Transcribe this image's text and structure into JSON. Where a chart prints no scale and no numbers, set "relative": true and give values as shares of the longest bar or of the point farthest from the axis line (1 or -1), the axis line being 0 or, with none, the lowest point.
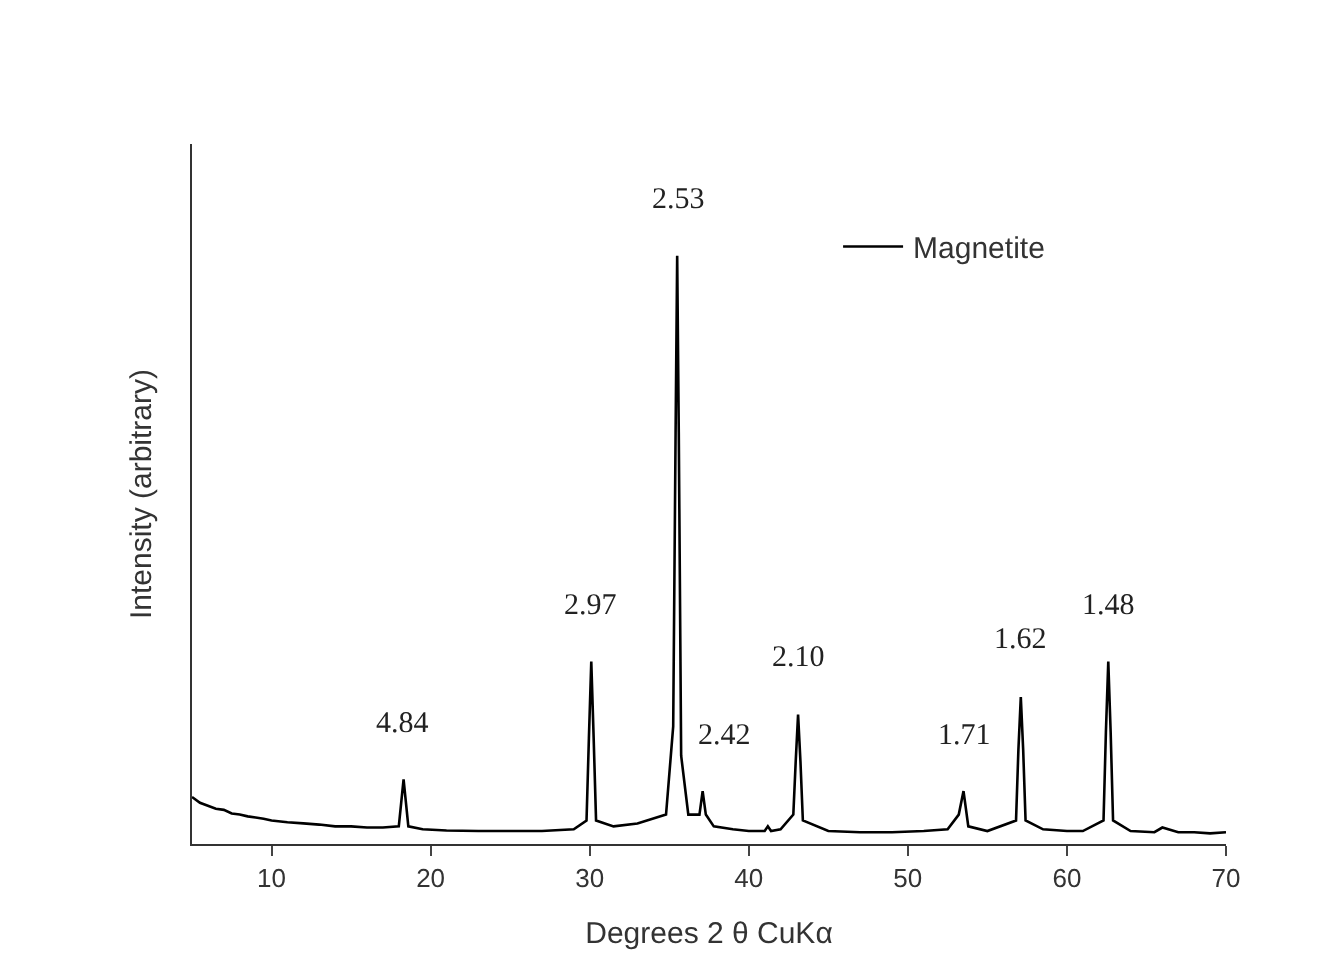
{
  "chart_data": {
    "type": "line",
    "relative": true,
    "xlabel": "Degrees 2 θ CuKα",
    "ylabel": "Intensity (arbitrary)",
    "xlim": [
      5,
      70
    ],
    "xticks": [
      10,
      20,
      30,
      40,
      50,
      60,
      70
    ],
    "legend": "top right",
    "marker": "none",
    "line_style": "solid",
    "series": [
      {
        "name": "Magnetite",
        "color": "#000000",
        "x": [
          5,
          5.5,
          6,
          6.5,
          7,
          7.5,
          8,
          8.5,
          9,
          9.5,
          10,
          11,
          12,
          13,
          14,
          15,
          16,
          17,
          18.0,
          18.15,
          18.3,
          18.45,
          18.6,
          19.5,
          21,
          23,
          25,
          27,
          29,
          29.8,
          29.95,
          30.1,
          30.25,
          30.4,
          31.5,
          33,
          34.8,
          35.25,
          35.4,
          35.5,
          35.6,
          35.75,
          36.2,
          36.9,
          37.1,
          37.3,
          37.8,
          39,
          40,
          41,
          41.2,
          41.4,
          42,
          42.8,
          42.95,
          43.1,
          43.25,
          43.4,
          45,
          47,
          49,
          51,
          52.5,
          53.2,
          53.5,
          53.8,
          55,
          56.8,
          56.95,
          57.1,
          57.25,
          57.4,
          58.5,
          60,
          61,
          62.3,
          62.45,
          62.6,
          62.75,
          62.9,
          64,
          65.5,
          66,
          67,
          68,
          69,
          70
        ],
        "values": [
          0.08,
          0.07,
          0.065,
          0.06,
          0.058,
          0.052,
          0.05,
          0.047,
          0.045,
          0.043,
          0.04,
          0.037,
          0.035,
          0.033,
          0.03,
          0.03,
          0.028,
          0.028,
          0.03,
          0.07,
          0.11,
          0.07,
          0.03,
          0.025,
          0.023,
          0.022,
          0.022,
          0.022,
          0.025,
          0.04,
          0.18,
          0.31,
          0.18,
          0.04,
          0.03,
          0.035,
          0.05,
          0.2,
          0.7,
          1.0,
          0.7,
          0.15,
          0.05,
          0.05,
          0.09,
          0.05,
          0.03,
          0.025,
          0.022,
          0.022,
          0.03,
          0.022,
          0.025,
          0.05,
          0.14,
          0.22,
          0.14,
          0.04,
          0.022,
          0.02,
          0.02,
          0.022,
          0.025,
          0.05,
          0.09,
          0.03,
          0.022,
          0.04,
          0.16,
          0.25,
          0.16,
          0.04,
          0.025,
          0.022,
          0.022,
          0.04,
          0.19,
          0.31,
          0.19,
          0.04,
          0.022,
          0.02,
          0.028,
          0.02,
          0.02,
          0.018,
          0.02
        ]
      }
    ],
    "annotations": [
      {
        "text": "4.84",
        "x": 18.3,
        "y": 0.11
      },
      {
        "text": "2.97",
        "x": 30.1,
        "y": 0.31
      },
      {
        "text": "2.53",
        "x": 35.5,
        "y": 1.0
      },
      {
        "text": "2.42",
        "x": 37.1,
        "y": 0.09
      },
      {
        "text": "2.10",
        "x": 43.1,
        "y": 0.22
      },
      {
        "text": "1.71",
        "x": 53.5,
        "y": 0.09
      },
      {
        "text": "1.62",
        "x": 57.1,
        "y": 0.25
      },
      {
        "text": "1.48",
        "x": 62.6,
        "y": 0.31
      }
    ]
  }
}
